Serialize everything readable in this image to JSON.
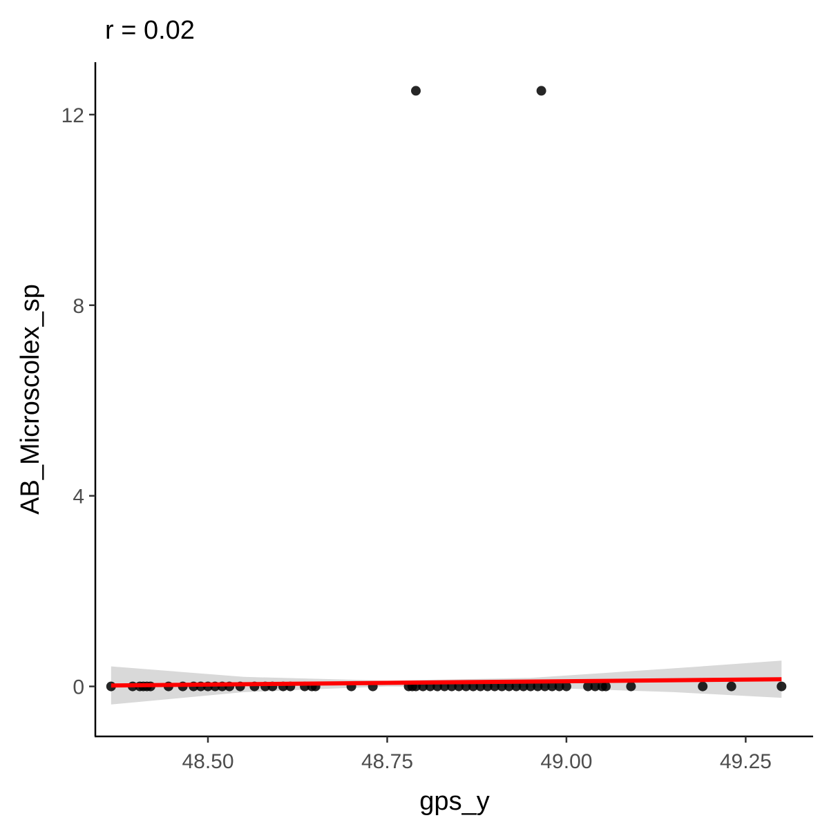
{
  "chart_data": {
    "type": "scatter",
    "title": "r = 0.02",
    "xlabel": "gps_y",
    "ylabel": "AB_Microscolex_sp",
    "xlim": [
      48.343,
      49.344
    ],
    "ylim": [
      -1.05,
      13.1
    ],
    "x_ticks": [
      48.5,
      48.75,
      49.0,
      49.25
    ],
    "x_tick_labels": [
      "48.50",
      "48.75",
      "49.00",
      "49.25"
    ],
    "y_ticks": [
      0,
      4,
      8,
      12
    ],
    "y_tick_labels": [
      "0",
      "4",
      "8",
      "12"
    ],
    "grid": false,
    "legend": "none",
    "points": {
      "x": [
        48.365,
        48.395,
        48.405,
        48.41,
        48.415,
        48.42,
        48.445,
        48.465,
        48.48,
        48.49,
        48.5,
        48.51,
        48.52,
        48.53,
        48.545,
        48.565,
        48.58,
        48.59,
        48.605,
        48.615,
        48.635,
        48.645,
        48.65,
        48.7,
        48.73,
        48.78,
        48.785,
        48.79,
        48.8,
        48.81,
        48.82,
        48.83,
        48.84,
        48.85,
        48.86,
        48.87,
        48.88,
        48.89,
        48.9,
        48.91,
        48.92,
        48.93,
        48.94,
        48.95,
        48.96,
        48.97,
        48.98,
        48.99,
        49.0,
        49.03,
        49.04,
        49.05,
        49.055,
        49.09,
        49.19,
        49.23,
        49.3,
        48.79,
        48.965
      ],
      "y": [
        0,
        0,
        0,
        0,
        0,
        0,
        0,
        0,
        0,
        0,
        0,
        0,
        0,
        0,
        0,
        0,
        0,
        0,
        0,
        0,
        0,
        0,
        0,
        0,
        0,
        0,
        0,
        0,
        0,
        0,
        0,
        0,
        0,
        0,
        0,
        0,
        0,
        0,
        0,
        0,
        0,
        0,
        0,
        0,
        0,
        0,
        0,
        0,
        0,
        0,
        0,
        0,
        0,
        0,
        0,
        0,
        0,
        12.5,
        12.5
      ]
    },
    "fit_line": {
      "x": [
        48.365,
        49.3
      ],
      "y": [
        0.02,
        0.15
      ],
      "color": "#ff0000"
    },
    "confidence_band": {
      "x": [
        48.365,
        48.55,
        48.75,
        48.95,
        49.15,
        49.3
      ],
      "lower": [
        -0.38,
        -0.12,
        0.0,
        -0.02,
        -0.12,
        -0.24
      ],
      "upper": [
        0.42,
        0.2,
        0.12,
        0.18,
        0.38,
        0.54
      ],
      "color": "#d9d9d9"
    },
    "point_color": "#000000"
  }
}
